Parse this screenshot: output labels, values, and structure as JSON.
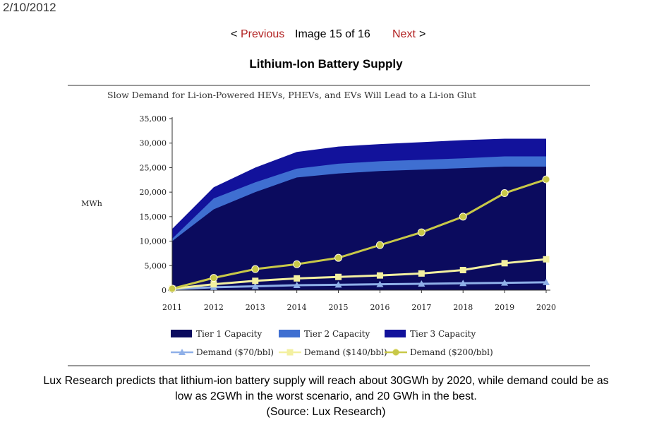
{
  "page": {
    "date": "2/10/2012",
    "nav": {
      "prev_symbol": "<",
      "previous_label": "Previous",
      "counter": "Image 15 of 16",
      "next_label": "Next",
      "next_symbol": ">"
    },
    "title": "Lithium-Ion Battery Supply",
    "caption_line1": "Lux Research predicts that lithium-ion battery supply will reach about 30GWh by 2020, while demand could be as",
    "caption_line2": "low as 2GWh in the worst scenario, and 20 GWh in the best.",
    "caption_line3": "(Source: Lux Research)"
  },
  "chart_data": {
    "type": "area",
    "title": "Slow Demand for Li-ion-Powered HEVs, PHEVs, and EVs Will Lead to a Li-ion Glut",
    "ylabel": "MWh",
    "xlabel": "",
    "x": [
      2011,
      2012,
      2013,
      2014,
      2015,
      2016,
      2017,
      2018,
      2019,
      2020
    ],
    "xtick_labels": [
      "2011",
      "2012",
      "2013",
      "2014",
      "2015",
      "2016",
      "2017",
      "2018",
      "2019",
      "2020"
    ],
    "ylim": [
      0,
      35000
    ],
    "yticks": [
      0,
      5000,
      10000,
      15000,
      20000,
      25000,
      30000,
      35000
    ],
    "ytick_labels": [
      "0",
      "5,000",
      "10,000",
      "15,000",
      "20,000",
      "25,000",
      "30,000",
      "35,000"
    ],
    "grid": false,
    "legend_position": "bottom",
    "stacked_areas": [
      {
        "name": "Tier 1 Capacity",
        "color": "#0b0b5e",
        "cumulative": [
          10000,
          16500,
          20000,
          23000,
          23800,
          24300,
          24600,
          24900,
          25200,
          25200
        ]
      },
      {
        "name": "Tier 2 Capacity",
        "color": "#3f6fd1",
        "cumulative": [
          10500,
          18700,
          22000,
          24800,
          25800,
          26300,
          26600,
          26900,
          27300,
          27300
        ]
      },
      {
        "name": "Tier 3 Capacity",
        "color": "#12129b",
        "cumulative": [
          12500,
          21000,
          25000,
          28200,
          29300,
          29800,
          30200,
          30600,
          30900,
          30900
        ]
      }
    ],
    "lines": [
      {
        "name": "Demand ($70/bbl)",
        "color": "#8fb0e8",
        "marker": "triangle",
        "values": [
          200,
          600,
          800,
          1000,
          1100,
          1200,
          1300,
          1400,
          1500,
          1600
        ]
      },
      {
        "name": "Demand ($140/bbl)",
        "color": "#f3f0a0",
        "marker": "square",
        "values": [
          300,
          1200,
          1900,
          2400,
          2700,
          3000,
          3400,
          4100,
          5500,
          6300
        ]
      },
      {
        "name": "Demand ($200/bbl)",
        "color": "#c8c848",
        "marker": "circle",
        "values": [
          300,
          2500,
          4300,
          5300,
          6600,
          9200,
          11800,
          15000,
          19800,
          22600
        ]
      }
    ],
    "colors": {
      "axis": "#333333",
      "divider": "#777777"
    }
  }
}
